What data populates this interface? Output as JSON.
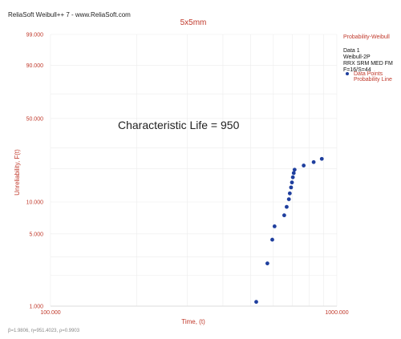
{
  "app_title": "ReliaSoft Weibull++ 7 - www.ReliaSoft.com",
  "footer_text": "β=1.9806, η=951.4023, ρ=0.9903",
  "colors": {
    "accent_red": "#c0392b",
    "point_blue": "#1f3f9e",
    "grid": "#ececec"
  },
  "chart_data": {
    "type": "scatter",
    "title": "5x5mm",
    "xlabel": "Time, (t)",
    "ylabel": "Unreliability, F(t)",
    "x_scale": "log",
    "y_scale": "weibull-probability",
    "xlim": [
      100,
      1000
    ],
    "ylim": [
      1,
      99
    ],
    "x_tick_labels": [
      "100.000",
      "1000.000"
    ],
    "x_ticks": [
      100,
      1000
    ],
    "y_tick_labels": [
      "99.000",
      "90.000",
      "50.000",
      "10.000",
      "5.000",
      "1.000"
    ],
    "y_ticks": [
      99,
      90,
      50,
      10,
      5,
      1
    ],
    "grid": true,
    "annotation": "Characteristic Life = 950",
    "legend": {
      "placement": "top-right",
      "header": "Probability-Weibull",
      "lines": [
        "Data 1",
        "Weibull-2P",
        "RRX SRM MED FM",
        "F=16/S=44"
      ],
      "entries": [
        "Data Points",
        "Probability Line"
      ]
    },
    "series": [
      {
        "marker": "circle",
        "points": [
          {
            "x": 523,
            "y": 1.1
          },
          {
            "x": 572,
            "y": 2.6
          },
          {
            "x": 595,
            "y": 4.4
          },
          {
            "x": 606,
            "y": 5.9
          },
          {
            "x": 655,
            "y": 7.5
          },
          {
            "x": 668,
            "y": 9.0
          },
          {
            "x": 680,
            "y": 10.6
          },
          {
            "x": 685,
            "y": 12.0
          },
          {
            "x": 692,
            "y": 13.6
          },
          {
            "x": 697,
            "y": 15.1
          },
          {
            "x": 702,
            "y": 16.8
          },
          {
            "x": 707,
            "y": 18.3
          },
          {
            "x": 712,
            "y": 19.6
          },
          {
            "x": 766,
            "y": 21.3
          },
          {
            "x": 830,
            "y": 22.8
          },
          {
            "x": 886,
            "y": 24.3
          }
        ]
      }
    ]
  }
}
